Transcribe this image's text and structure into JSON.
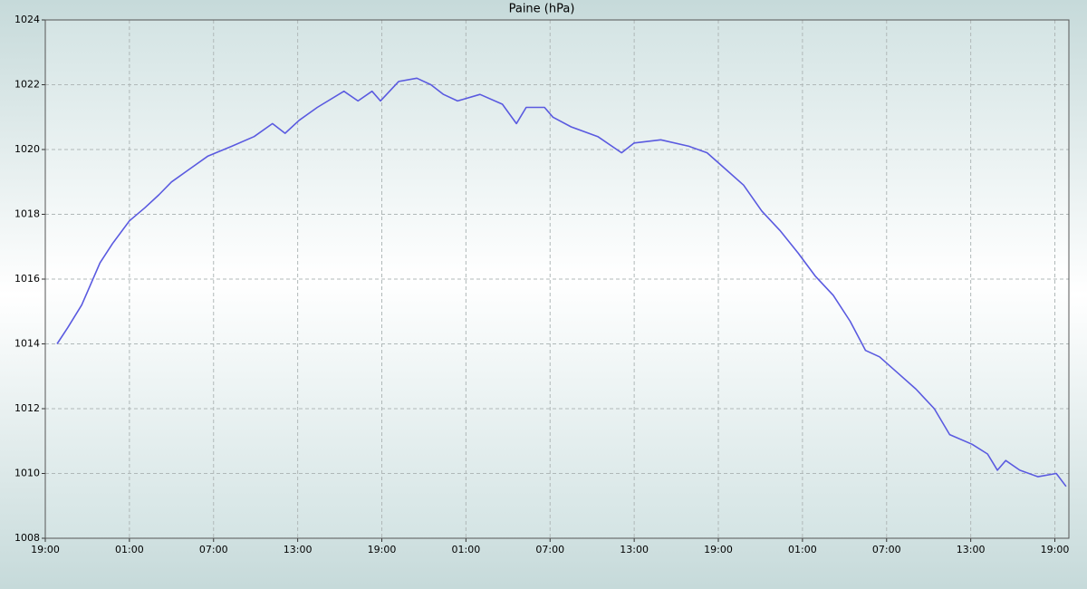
{
  "chart_data": {
    "type": "line",
    "title": "Paine (hPa)",
    "x": [
      0.84,
      1.6,
      2.6,
      3.2,
      3.9,
      4.8,
      6.0,
      7.1,
      8.1,
      9.0,
      10.3,
      11.6,
      13.3,
      14.9,
      16.2,
      17.1,
      18.1,
      19.4,
      21.3,
      22.3,
      23.3,
      23.9,
      25.2,
      26.5,
      27.5,
      28.4,
      29.4,
      31.0,
      32.6,
      33.6,
      34.3,
      35.6,
      36.2,
      37.5,
      39.4,
      41.1,
      42.0,
      43.9,
      45.9,
      47.2,
      48.5,
      49.8,
      51.1,
      52.4,
      53.7,
      54.9,
      56.2,
      57.4,
      58.5,
      59.5,
      60.8,
      62.1,
      63.4,
      64.5,
      66.1,
      67.2,
      67.9,
      68.5,
      69.5,
      70.8,
      72.1,
      72.8
    ],
    "series": [
      {
        "name": "Paine",
        "color": "#5a5ae0",
        "values": [
          1014.0,
          1014.5,
          1015.2,
          1015.8,
          1016.5,
          1017.1,
          1017.8,
          1018.2,
          1018.6,
          1019.0,
          1019.4,
          1019.8,
          1020.1,
          1020.4,
          1020.8,
          1020.5,
          1020.9,
          1021.3,
          1021.8,
          1021.5,
          1021.8,
          1021.5,
          1022.1,
          1022.2,
          1022.0,
          1021.7,
          1021.5,
          1021.7,
          1021.4,
          1020.8,
          1021.3,
          1021.3,
          1021.0,
          1020.7,
          1020.4,
          1019.9,
          1020.2,
          1020.3,
          1020.1,
          1019.9,
          1019.4,
          1018.9,
          1018.1,
          1017.5,
          1016.8,
          1016.1,
          1015.5,
          1014.7,
          1013.8,
          1013.6,
          1013.1,
          1012.6,
          1012.0,
          1011.2,
          1010.9,
          1010.6,
          1010.1,
          1010.4,
          1010.1,
          1009.9,
          1010.0,
          1009.6
        ]
      }
    ],
    "xlim": [
      0,
      73
    ],
    "xticks": [
      {
        "value": 0,
        "label": "19:00"
      },
      {
        "value": 6,
        "label": "01:00"
      },
      {
        "value": 12,
        "label": "07:00"
      },
      {
        "value": 18,
        "label": "13:00"
      },
      {
        "value": 24,
        "label": "19:00"
      },
      {
        "value": 30,
        "label": "01:00"
      },
      {
        "value": 36,
        "label": "07:00"
      },
      {
        "value": 42,
        "label": "13:00"
      },
      {
        "value": 48,
        "label": "19:00"
      },
      {
        "value": 54,
        "label": "01:00"
      },
      {
        "value": 60,
        "label": "07:00"
      },
      {
        "value": 66,
        "label": "13:00"
      },
      {
        "value": 72,
        "label": "19:00"
      }
    ],
    "ylim": [
      1008,
      1024
    ],
    "yticks": [
      1008,
      1010,
      1012,
      1014,
      1016,
      1018,
      1020,
      1022,
      1024
    ],
    "grid": true
  }
}
